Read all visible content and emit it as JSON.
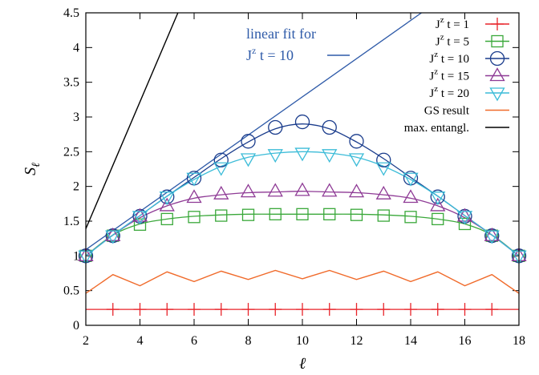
{
  "chart_data": {
    "type": "line",
    "xlabel": "ℓ",
    "ylabel": "S_ℓ",
    "xlim": [
      2,
      18
    ],
    "ylim": [
      0,
      4.5
    ],
    "xticks": [
      2,
      4,
      6,
      8,
      10,
      12,
      14,
      16,
      18
    ],
    "yticks": [
      0,
      0.5,
      1,
      1.5,
      2,
      2.5,
      3,
      3.5,
      4,
      4.5
    ],
    "ytick_labels": [
      "0",
      "0.5",
      "1",
      "1.5",
      "2",
      "2.5",
      "3",
      "3.5",
      "4",
      "4.5"
    ],
    "legend_position": "top-right",
    "series": [
      {
        "name": "J^z t = 1",
        "name_parts": [
          "J",
          "z",
          " t = 1"
        ],
        "color": "#e8242a",
        "marker": "plus",
        "x": [
          3,
          4,
          5,
          6,
          7,
          8,
          9,
          10,
          11,
          12,
          13,
          14,
          15,
          16,
          17
        ],
        "values": [
          0.23,
          0.23,
          0.23,
          0.23,
          0.23,
          0.23,
          0.23,
          0.23,
          0.23,
          0.23,
          0.23,
          0.23,
          0.23,
          0.23,
          0.23
        ],
        "fit": [
          [
            2,
            0.23
          ],
          [
            18,
            0.23
          ]
        ]
      },
      {
        "name": "J^z t = 5",
        "name_parts": [
          "J",
          "z",
          " t = 5"
        ],
        "color": "#3aa83a",
        "marker": "square",
        "x": [
          2,
          3,
          4,
          5,
          6,
          7,
          8,
          9,
          10,
          11,
          12,
          13,
          14,
          15,
          16,
          17,
          18
        ],
        "values": [
          1.0,
          1.29,
          1.45,
          1.53,
          1.56,
          1.58,
          1.59,
          1.6,
          1.6,
          1.6,
          1.59,
          1.58,
          1.56,
          1.53,
          1.46,
          1.29,
          1.0
        ],
        "fit": [
          [
            2,
            1.0
          ],
          [
            3,
            1.3
          ],
          [
            4,
            1.46
          ],
          [
            5,
            1.53
          ],
          [
            6,
            1.57
          ],
          [
            7,
            1.59
          ],
          [
            8,
            1.6
          ],
          [
            9,
            1.6
          ],
          [
            10,
            1.6
          ],
          [
            11,
            1.6
          ],
          [
            12,
            1.6
          ],
          [
            13,
            1.59
          ],
          [
            14,
            1.57
          ],
          [
            15,
            1.53
          ],
          [
            16,
            1.46
          ],
          [
            17,
            1.3
          ],
          [
            18,
            1.0
          ]
        ]
      },
      {
        "name": "J^z t = 10",
        "name_parts": [
          "J",
          "z",
          " t = 10"
        ],
        "color": "#1a3c8c",
        "marker": "circle",
        "x": [
          2,
          3,
          4,
          5,
          6,
          7,
          8,
          9,
          10,
          11,
          12,
          13,
          14,
          15,
          16,
          17,
          18
        ],
        "values": [
          1.0,
          1.29,
          1.57,
          1.85,
          2.12,
          2.38,
          2.65,
          2.85,
          2.93,
          2.85,
          2.65,
          2.38,
          2.12,
          1.85,
          1.57,
          1.29,
          1.0
        ],
        "fit": [
          [
            2,
            1.0
          ],
          [
            3,
            1.3
          ],
          [
            4,
            1.58
          ],
          [
            5,
            1.86
          ],
          [
            6,
            2.13
          ],
          [
            7,
            2.4
          ],
          [
            8,
            2.64
          ],
          [
            9,
            2.83
          ],
          [
            10,
            2.9
          ],
          [
            11,
            2.83
          ],
          [
            12,
            2.64
          ],
          [
            13,
            2.4
          ],
          [
            14,
            2.13
          ],
          [
            15,
            1.86
          ],
          [
            16,
            1.58
          ],
          [
            17,
            1.3
          ],
          [
            18,
            1.0
          ]
        ]
      },
      {
        "name": "J^z t = 15",
        "name_parts": [
          "J",
          "z",
          " t = 15"
        ],
        "color": "#8e3a95",
        "marker": "triangle-up",
        "x": [
          2,
          3,
          4,
          5,
          6,
          7,
          8,
          9,
          10,
          11,
          12,
          13,
          14,
          15,
          16,
          17,
          18
        ],
        "values": [
          1.0,
          1.29,
          1.57,
          1.72,
          1.84,
          1.89,
          1.92,
          1.93,
          1.94,
          1.93,
          1.92,
          1.89,
          1.84,
          1.72,
          1.57,
          1.29,
          1.0
        ],
        "fit": [
          [
            2,
            1.0
          ],
          [
            3,
            1.3
          ],
          [
            4,
            1.55
          ],
          [
            5,
            1.72
          ],
          [
            6,
            1.83
          ],
          [
            7,
            1.88
          ],
          [
            8,
            1.91
          ],
          [
            9,
            1.92
          ],
          [
            10,
            1.93
          ],
          [
            11,
            1.92
          ],
          [
            12,
            1.91
          ],
          [
            13,
            1.88
          ],
          [
            14,
            1.83
          ],
          [
            15,
            1.72
          ],
          [
            16,
            1.55
          ],
          [
            17,
            1.3
          ],
          [
            18,
            1.0
          ]
        ]
      },
      {
        "name": "J^z t = 20",
        "name_parts": [
          "J",
          "z",
          " t = 20"
        ],
        "color": "#3cbcd8",
        "marker": "triangle-down",
        "x": [
          2,
          3,
          4,
          5,
          6,
          7,
          8,
          9,
          10,
          11,
          12,
          13,
          14,
          15,
          16,
          17,
          18
        ],
        "values": [
          1.0,
          1.29,
          1.57,
          1.85,
          2.12,
          2.27,
          2.4,
          2.46,
          2.48,
          2.46,
          2.4,
          2.27,
          2.12,
          1.85,
          1.57,
          1.29,
          1.0
        ],
        "fit": [
          [
            2,
            1.0
          ],
          [
            3,
            1.3
          ],
          [
            4,
            1.58
          ],
          [
            5,
            1.86
          ],
          [
            6,
            2.1
          ],
          [
            7,
            2.29
          ],
          [
            8,
            2.42
          ],
          [
            9,
            2.48
          ],
          [
            10,
            2.5
          ],
          [
            11,
            2.48
          ],
          [
            12,
            2.42
          ],
          [
            13,
            2.29
          ],
          [
            14,
            2.1
          ],
          [
            15,
            1.86
          ],
          [
            16,
            1.58
          ],
          [
            17,
            1.3
          ],
          [
            18,
            1.0
          ]
        ]
      },
      {
        "name": "GS result",
        "color": "#f06a2a",
        "marker": "none",
        "x": [
          2,
          3,
          4,
          5,
          6,
          7,
          8,
          9,
          10,
          11,
          12,
          13,
          14,
          15,
          16,
          17,
          18
        ],
        "values": [
          0.46,
          0.73,
          0.57,
          0.77,
          0.63,
          0.78,
          0.66,
          0.79,
          0.67,
          0.79,
          0.66,
          0.78,
          0.63,
          0.77,
          0.57,
          0.73,
          0.46
        ]
      },
      {
        "name": "max. entangl.",
        "color": "#000000",
        "marker": "none",
        "x": [
          2,
          5.4
        ],
        "values": [
          1.39,
          4.5
        ]
      }
    ],
    "annotation": {
      "lines": [
        "linear fit for",
        "J^z t = 10"
      ],
      "color": "#2e5aa8",
      "fit_line": {
        "x": [
          2,
          14.4
        ],
        "values": [
          1.09,
          4.5
        ]
      }
    }
  }
}
